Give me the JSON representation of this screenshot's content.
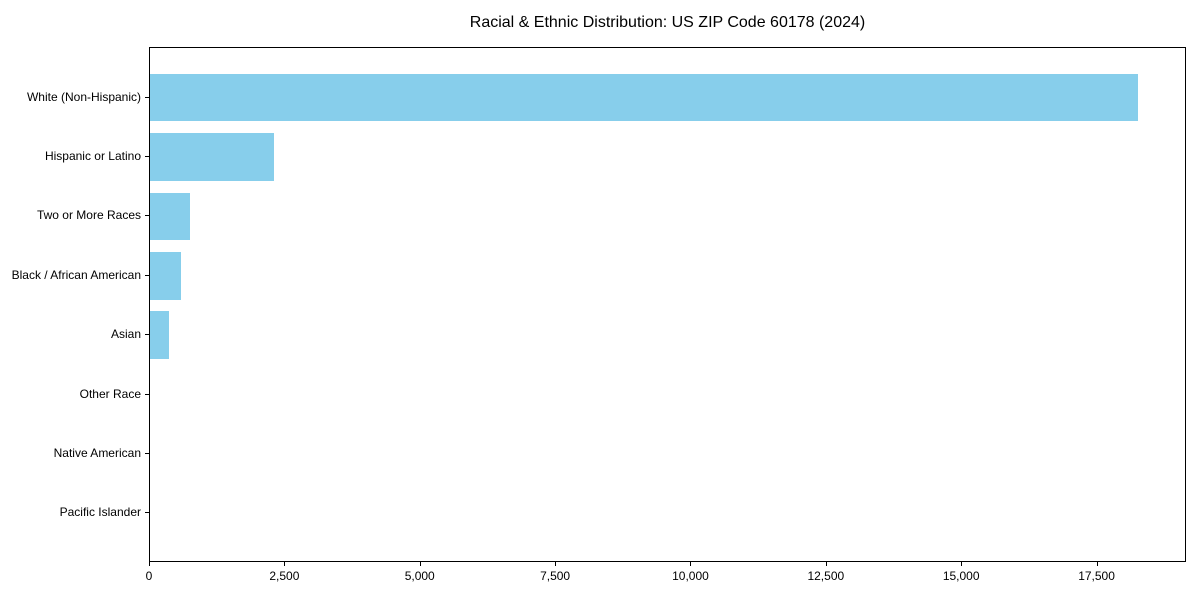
{
  "chart_data": {
    "type": "bar",
    "orientation": "horizontal",
    "title": "Racial & Ethnic Distribution: US ZIP Code 60178 (2024)",
    "categories": [
      "White (Non-Hispanic)",
      "Hispanic or Latino",
      "Two or More Races",
      "Black / African American",
      "Asian",
      "Other Race",
      "Native American",
      "Pacific Islander"
    ],
    "values": [
      18240,
      2290,
      730,
      580,
      350,
      0,
      0,
      0
    ],
    "xlabel": "",
    "ylabel": "",
    "xlim": [
      0,
      19152
    ],
    "x_ticks": [
      0,
      2500,
      5000,
      7500,
      10000,
      12500,
      15000,
      17500
    ],
    "x_tick_labels": [
      "0",
      "2,500",
      "5,000",
      "7,500",
      "10,000",
      "12,500",
      "15,000",
      "17,500"
    ],
    "grid": false,
    "legend": null,
    "bar_color": "#87CEEB",
    "spine_color": "#000000",
    "text_color": "#000000",
    "background": "#FFFFFF"
  }
}
